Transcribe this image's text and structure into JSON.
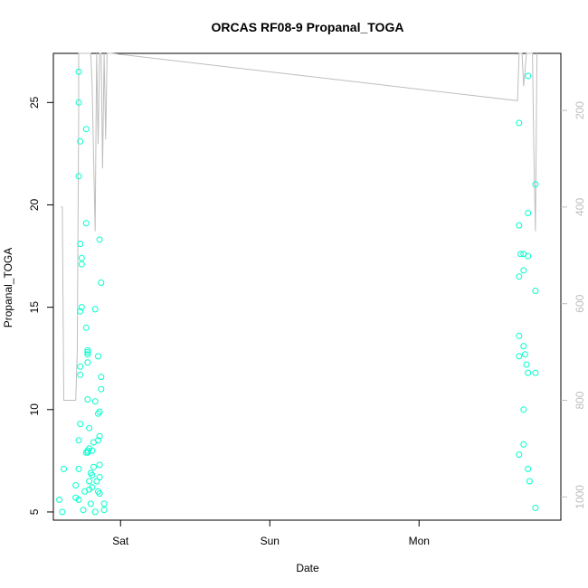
{
  "chart_data": {
    "type": "scatter",
    "title": "ORCAS RF08-9 Propanal_TOGA",
    "xlabel": "Date",
    "ylabel": "Propanal_TOGA",
    "x_unit": "days since Fri 00:00 (Sat = 1, Sun = 2, Mon = 3)",
    "x_ticks": [
      {
        "value": 1,
        "label": "Sat"
      },
      {
        "value": 2,
        "label": "Sun"
      },
      {
        "value": 3,
        "label": "Mon"
      }
    ],
    "xlim": [
      0.55,
      3.95
    ],
    "ylim": [
      4.6,
      27.4
    ],
    "y_ticks": [
      5,
      10,
      15,
      20,
      25
    ],
    "y2_ticks": [
      200,
      400,
      600,
      800,
      1000
    ],
    "y2lim": [
      1048,
      82
    ],
    "y2_reversed": true,
    "grid": false,
    "colors": {
      "points": "#00ffcc",
      "line": "#bebebe",
      "axis": "#000000",
      "right_axis": "#bebebe"
    },
    "series": [
      {
        "kind": "points",
        "points": [
          [
            0.59,
            5.6
          ],
          [
            0.61,
            5.0
          ],
          [
            0.62,
            7.1
          ],
          [
            0.7,
            6.3
          ],
          [
            0.7,
            5.7
          ],
          [
            0.72,
            5.6
          ],
          [
            0.72,
            7.1
          ],
          [
            0.72,
            8.5
          ],
          [
            0.73,
            9.3
          ],
          [
            0.73,
            11.7
          ],
          [
            0.73,
            12.1
          ],
          [
            0.73,
            14.8
          ],
          [
            0.74,
            15.0
          ],
          [
            0.73,
            18.1
          ],
          [
            0.74,
            17.4
          ],
          [
            0.74,
            17.1
          ],
          [
            0.72,
            21.4
          ],
          [
            0.73,
            23.1
          ],
          [
            0.72,
            25.0
          ],
          [
            0.72,
            26.5
          ],
          [
            0.75,
            5.1
          ],
          [
            0.76,
            6.0
          ],
          [
            0.77,
            14.0
          ],
          [
            0.77,
            19.1
          ],
          [
            0.77,
            23.7
          ],
          [
            0.77,
            7.9
          ],
          [
            0.78,
            7.9
          ],
          [
            0.78,
            8.0
          ],
          [
            0.78,
            12.3
          ],
          [
            0.78,
            12.7
          ],
          [
            0.78,
            12.8
          ],
          [
            0.78,
            12.9
          ],
          [
            0.78,
            10.5
          ],
          [
            0.79,
            9.1
          ],
          [
            0.79,
            6.5
          ],
          [
            0.79,
            6.1
          ],
          [
            0.79,
            8.1
          ],
          [
            0.8,
            5.4
          ],
          [
            0.8,
            6.9
          ],
          [
            0.81,
            8.0
          ],
          [
            0.81,
            6.8
          ],
          [
            0.81,
            6.2
          ],
          [
            0.82,
            7.2
          ],
          [
            0.82,
            8.4
          ],
          [
            0.83,
            14.9
          ],
          [
            0.83,
            10.4
          ],
          [
            0.83,
            5.0
          ],
          [
            0.84,
            6.5
          ],
          [
            0.85,
            6.0
          ],
          [
            0.86,
            5.9
          ],
          [
            0.85,
            12.6
          ],
          [
            0.86,
            18.3
          ],
          [
            0.85,
            9.8
          ],
          [
            0.86,
            9.9
          ],
          [
            0.85,
            8.5
          ],
          [
            0.86,
            8.7
          ],
          [
            0.86,
            7.3
          ],
          [
            0.86,
            6.7
          ],
          [
            0.87,
            11.0
          ],
          [
            0.87,
            11.6
          ],
          [
            0.87,
            16.2
          ],
          [
            0.89,
            5.4
          ],
          [
            0.89,
            5.1
          ],
          [
            3.67,
            24.0
          ],
          [
            3.67,
            19.0
          ],
          [
            3.67,
            16.5
          ],
          [
            3.67,
            12.6
          ],
          [
            3.67,
            13.6
          ],
          [
            3.68,
            17.6
          ],
          [
            3.67,
            7.8
          ],
          [
            3.7,
            17.6
          ],
          [
            3.7,
            16.8
          ],
          [
            3.7,
            13.1
          ],
          [
            3.7,
            10.0
          ],
          [
            3.7,
            8.3
          ],
          [
            3.71,
            12.7
          ],
          [
            3.73,
            17.5
          ],
          [
            3.72,
            12.2
          ],
          [
            3.73,
            11.8
          ],
          [
            3.73,
            7.1
          ],
          [
            3.74,
            6.5
          ],
          [
            3.73,
            19.6
          ],
          [
            3.73,
            26.3
          ],
          [
            3.78,
            21.0
          ],
          [
            3.78,
            15.8
          ],
          [
            3.78,
            11.8
          ],
          [
            3.78,
            5.2
          ]
        ]
      },
      {
        "kind": "line",
        "axis": "right",
        "points": [
          [
            0.6,
            400
          ],
          [
            0.61,
            400
          ],
          [
            0.62,
            800
          ],
          [
            0.63,
            800
          ],
          [
            0.69,
            800
          ],
          [
            0.7,
            800
          ],
          [
            0.71,
            700
          ],
          [
            0.72,
            200
          ],
          [
            0.72,
            82
          ],
          [
            0.73,
            82
          ],
          [
            0.74,
            82
          ],
          [
            0.75,
            82
          ],
          [
            0.76,
            82
          ],
          [
            0.77,
            82
          ],
          [
            0.78,
            82
          ],
          [
            0.8,
            82
          ],
          [
            0.81,
            150
          ],
          [
            0.82,
            300
          ],
          [
            0.83,
            450
          ],
          [
            0.84,
            82
          ],
          [
            0.84,
            82
          ],
          [
            0.85,
            270
          ],
          [
            0.86,
            82
          ],
          [
            0.87,
            82
          ],
          [
            0.88,
            320
          ],
          [
            0.89,
            82
          ],
          [
            0.9,
            260
          ],
          [
            0.91,
            82
          ],
          [
            0.92,
            82
          ],
          [
            0.93,
            82
          ],
          [
            0.94,
            82
          ],
          [
            3.66,
            180
          ],
          [
            3.67,
            82
          ],
          [
            3.68,
            82
          ],
          [
            3.69,
            82
          ],
          [
            3.7,
            150
          ],
          [
            3.72,
            82
          ],
          [
            3.73,
            82
          ],
          [
            3.74,
            82
          ],
          [
            3.75,
            82
          ],
          [
            3.76,
            82
          ],
          [
            3.77,
            300
          ],
          [
            3.78,
            450
          ],
          [
            3.79,
            82
          ]
        ]
      }
    ]
  }
}
